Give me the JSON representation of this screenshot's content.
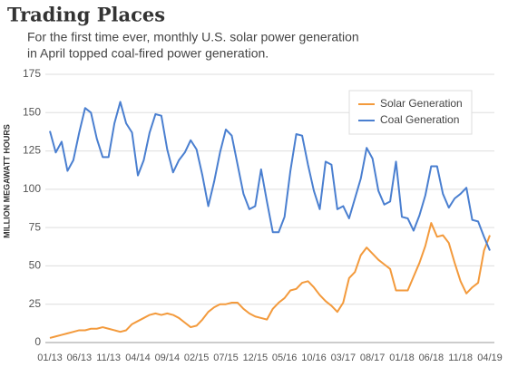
{
  "chart_data": {
    "type": "line",
    "title": "Trading Places",
    "subtitle": [
      "For the first time ever, monthly U.S. solar power generation",
      "in April topped coal-fired power generation."
    ],
    "ylabel": "MILLION MEGAWATT HOURS",
    "categories": [
      "01/13",
      null,
      null,
      null,
      null,
      "06/13",
      null,
      null,
      null,
      null,
      "11/13",
      null,
      null,
      null,
      null,
      "04/14",
      null,
      null,
      null,
      null,
      "09/14",
      null,
      null,
      null,
      null,
      "02/15",
      null,
      null,
      null,
      null,
      "07/15",
      null,
      null,
      null,
      null,
      "12/15",
      null,
      null,
      null,
      null,
      "05/16",
      null,
      null,
      null,
      null,
      "10/16",
      null,
      null,
      null,
      null,
      "03/17",
      null,
      null,
      null,
      null,
      "08/17",
      null,
      null,
      null,
      null,
      "01/18",
      null,
      null,
      null,
      null,
      "06/18",
      null,
      null,
      null,
      null,
      "11/18",
      null,
      null,
      null,
      null,
      "04/19"
    ],
    "series": [
      {
        "name": "Solar Generation",
        "color": "#f39a3c",
        "values": [
          3,
          4,
          5,
          6,
          7,
          8,
          8,
          9,
          9,
          10,
          9,
          8,
          7,
          8,
          12,
          14,
          16,
          18,
          19,
          18,
          19,
          18,
          16,
          13,
          10,
          11,
          15,
          20,
          23,
          25,
          25,
          26,
          26,
          22,
          19,
          17,
          16,
          15,
          22,
          26,
          29,
          34,
          35,
          39,
          40,
          36,
          31,
          27,
          24,
          20,
          26,
          42,
          46,
          57,
          62,
          58,
          54,
          51,
          48,
          34,
          34,
          34,
          43,
          52,
          63,
          78,
          69,
          70,
          65,
          52,
          40,
          32,
          36,
          39,
          60,
          70
        ]
      },
      {
        "name": "Coal Generation",
        "color": "#4a7fd0",
        "values": [
          138,
          124,
          131,
          112,
          119,
          137,
          153,
          150,
          133,
          121,
          121,
          143,
          157,
          143,
          137,
          109,
          119,
          137,
          149,
          148,
          126,
          111,
          119,
          124,
          132,
          126,
          109,
          89,
          105,
          124,
          139,
          135,
          116,
          97,
          87,
          89,
          113,
          92,
          72,
          72,
          82,
          112,
          136,
          135,
          116,
          99,
          87,
          118,
          116,
          87,
          89,
          81,
          94,
          107,
          127,
          120,
          99,
          90,
          92,
          118,
          82,
          81,
          73,
          83,
          96,
          115,
          115,
          97,
          88,
          94,
          97,
          101,
          80,
          79,
          69,
          60
        ]
      }
    ],
    "ylim": [
      0,
      175
    ],
    "yticks": [
      0,
      25,
      50,
      75,
      100,
      125,
      150,
      175
    ],
    "grid": true,
    "legend": "upper right"
  }
}
